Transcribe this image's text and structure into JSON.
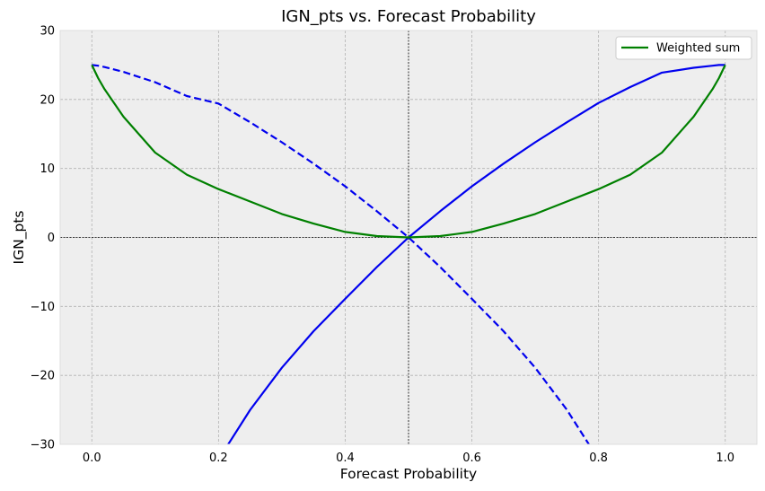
{
  "chart_data": {
    "type": "line",
    "title": "IGN_pts vs. Forecast Probability",
    "xlabel": "Forecast Probability",
    "ylabel": "IGN_pts",
    "xlim": [
      -0.05,
      1.05
    ],
    "ylim": [
      -30,
      30
    ],
    "xticks": [
      0.0,
      0.2,
      0.4,
      0.6,
      0.8,
      1.0
    ],
    "xtick_labels": [
      "0.0",
      "0.2",
      "0.4",
      "0.6",
      "0.8",
      "1.0"
    ],
    "yticks": [
      -30,
      -20,
      -10,
      0,
      10,
      20,
      30
    ],
    "ytick_labels": [
      "−30",
      "−20",
      "−10",
      "0",
      "10",
      "20",
      "30"
    ],
    "grid": true,
    "reference_lines": {
      "x": 0.5,
      "y": 0
    },
    "legend": {
      "position": "top-right",
      "entries": [
        "Weighted sum"
      ]
    },
    "x": [
      0.0,
      0.01,
      0.02,
      0.05,
      0.1,
      0.15,
      0.2,
      0.25,
      0.3,
      0.35,
      0.4,
      0.45,
      0.5,
      0.55,
      0.6,
      0.65,
      0.7,
      0.75,
      0.8,
      0.85,
      0.9,
      0.95,
      0.98,
      0.99,
      1.0
    ],
    "series": [
      {
        "style": "solid",
        "color": "#0000ee",
        "values": [
          null,
          null,
          null,
          null,
          null,
          null,
          -32.2,
          -25.0,
          -18.9,
          -13.6,
          -8.9,
          -4.3,
          0.0,
          3.8,
          7.4,
          10.7,
          13.8,
          16.7,
          19.5,
          21.8,
          23.9,
          24.6,
          24.9,
          25.0,
          25.0
        ]
      },
      {
        "style": "dashed",
        "color": "#0000ee",
        "values": [
          25.0,
          24.9,
          24.7,
          24.0,
          22.5,
          20.5,
          19.4,
          16.7,
          13.8,
          10.7,
          7.4,
          3.8,
          0.0,
          -4.3,
          -8.9,
          -13.6,
          -18.9,
          -25.0,
          -32.2,
          null,
          null,
          null,
          null,
          null,
          null
        ]
      },
      {
        "name": "Weighted sum",
        "style": "solid",
        "color": "#008000",
        "values": [
          25.0,
          23.1,
          21.5,
          17.5,
          12.3,
          9.1,
          7.0,
          5.2,
          3.4,
          2.0,
          0.8,
          0.2,
          0.0,
          0.2,
          0.8,
          2.0,
          3.4,
          5.2,
          7.0,
          9.1,
          12.3,
          17.5,
          21.5,
          23.1,
          25.0
        ]
      }
    ]
  }
}
